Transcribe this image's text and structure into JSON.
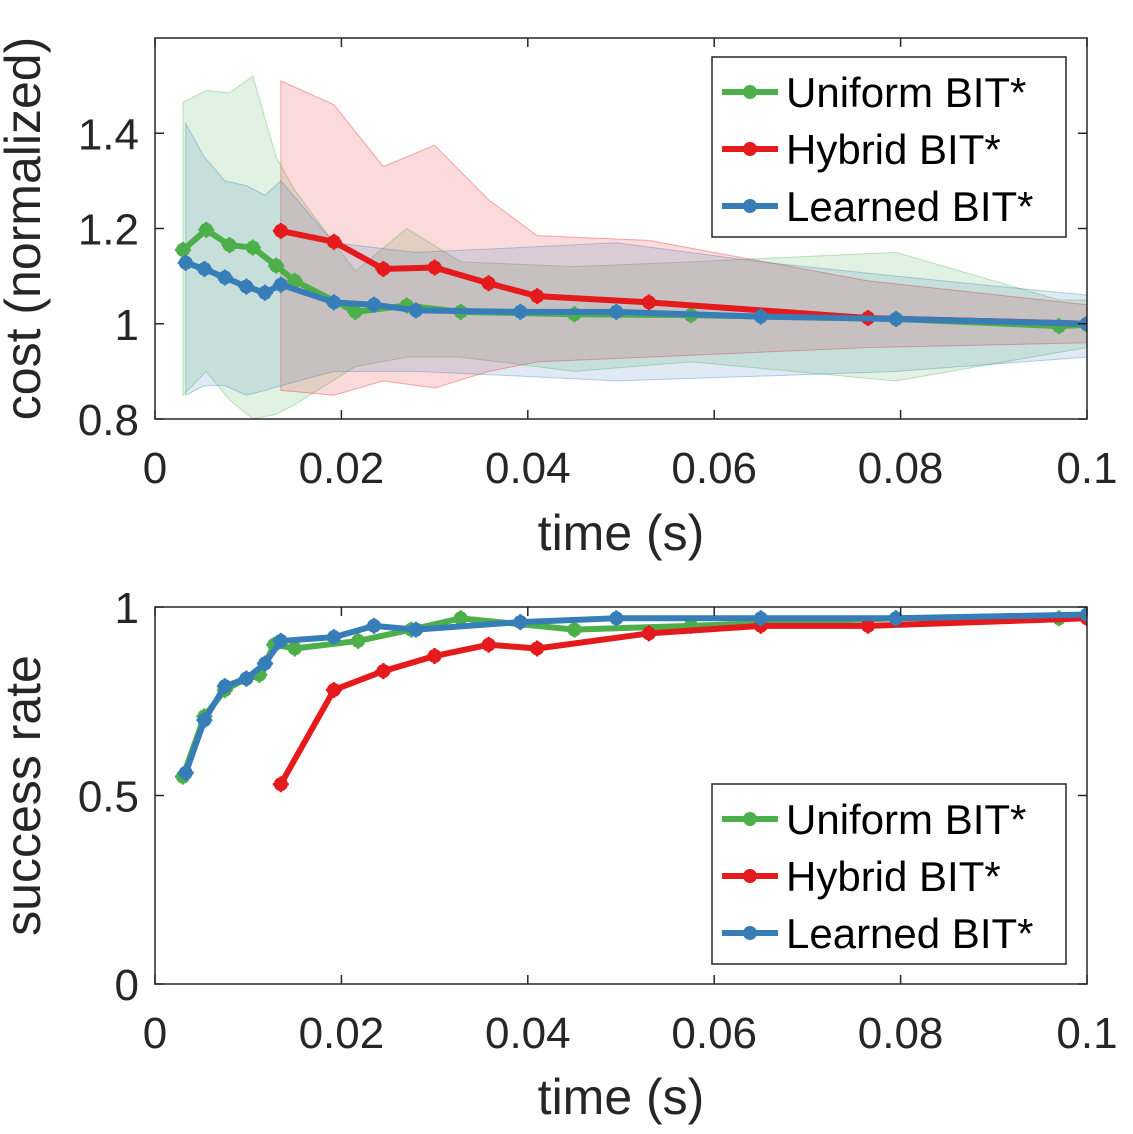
{
  "colors": {
    "uniform": "#4daf4a",
    "hybrid": "#e41a1c",
    "learned": "#377eb8"
  },
  "chart_data": [
    {
      "type": "line",
      "id": "cost",
      "xlabel": "time (s)",
      "ylabel": "cost (normalized)",
      "xlim": [
        0,
        0.1
      ],
      "ylim": [
        0.8,
        1.6
      ],
      "xticks": [
        0,
        0.02,
        0.04,
        0.06,
        0.08,
        0.1
      ],
      "xtick_labels": [
        "0",
        "0.02",
        "0.04",
        "0.06",
        "0.08",
        "0.1"
      ],
      "yticks": [
        0.8,
        1,
        1.2,
        1.4
      ],
      "ytick_labels": [
        "0.8",
        "1",
        "1.2",
        "1.4"
      ],
      "legend_position": "top-right",
      "series": [
        {
          "name": "Uniform BIT*",
          "key": "uniform",
          "x": [
            0.003,
            0.0055,
            0.008,
            0.0105,
            0.013,
            0.015,
            0.0215,
            0.027,
            0.0328,
            0.045,
            0.0575,
            0.0795,
            0.097,
            0.1
          ],
          "y": [
            1.155,
            1.197,
            1.165,
            1.16,
            1.122,
            1.09,
            1.025,
            1.038,
            1.025,
            1.02,
            1.018,
            1.01,
            0.995,
            0.998
          ],
          "band_upper": [
            1.465,
            1.49,
            1.485,
            1.52,
            1.35,
            1.28,
            1.11,
            1.2,
            1.13,
            1.12,
            1.13,
            1.15,
            1.05,
            1.05
          ],
          "band_lower": [
            0.85,
            0.9,
            0.84,
            0.8,
            0.81,
            0.83,
            0.91,
            0.93,
            0.93,
            0.9,
            0.92,
            0.88,
            0.94,
            0.95
          ]
        },
        {
          "name": "Hybrid BIT*",
          "key": "hybrid",
          "x": [
            0.0135,
            0.0192,
            0.0245,
            0.03,
            0.0358,
            0.041,
            0.053,
            0.0765,
            0.1
          ],
          "y": [
            1.195,
            1.172,
            1.115,
            1.118,
            1.085,
            1.058,
            1.045,
            1.012,
            1.0
          ],
          "band_upper": [
            1.51,
            1.46,
            1.33,
            1.375,
            1.26,
            1.185,
            1.175,
            1.09,
            1.04
          ],
          "band_lower": [
            0.86,
            0.85,
            0.88,
            0.865,
            0.9,
            0.92,
            0.93,
            0.95,
            0.96
          ]
        },
        {
          "name": "Learned BIT*",
          "key": "learned",
          "x": [
            0.0033,
            0.0053,
            0.0075,
            0.0098,
            0.0118,
            0.0135,
            0.0192,
            0.0235,
            0.028,
            0.0392,
            0.0495,
            0.065,
            0.0795,
            0.1
          ],
          "y": [
            1.128,
            1.115,
            1.097,
            1.078,
            1.065,
            1.082,
            1.045,
            1.04,
            1.028,
            1.025,
            1.025,
            1.015,
            1.01,
            1.0
          ],
          "band_upper": [
            1.42,
            1.35,
            1.3,
            1.29,
            1.27,
            1.3,
            1.17,
            1.16,
            1.15,
            1.16,
            1.17,
            1.13,
            1.1,
            1.06
          ],
          "band_lower": [
            0.85,
            0.87,
            0.87,
            0.85,
            0.86,
            0.87,
            0.9,
            0.9,
            0.9,
            0.89,
            0.88,
            0.89,
            0.9,
            0.93
          ]
        }
      ]
    },
    {
      "type": "line",
      "id": "success",
      "xlabel": "time (s)",
      "ylabel": "success rate",
      "xlim": [
        0,
        0.1
      ],
      "ylim": [
        0,
        1
      ],
      "xticks": [
        0,
        0.02,
        0.04,
        0.06,
        0.08,
        0.1
      ],
      "xtick_labels": [
        "0",
        "0.02",
        "0.04",
        "0.06",
        "0.08",
        "0.1"
      ],
      "yticks": [
        0,
        0.5,
        1
      ],
      "ytick_labels": [
        "0",
        "0.5",
        "1"
      ],
      "legend_position": "bottom-right",
      "series": [
        {
          "name": "Uniform BIT*",
          "key": "uniform",
          "x": [
            0.003,
            0.0053,
            0.0075,
            0.0098,
            0.0112,
            0.0128,
            0.015,
            0.0218,
            0.0275,
            0.0328,
            0.045,
            0.0575,
            0.0795,
            0.097
          ],
          "y": [
            0.55,
            0.71,
            0.78,
            0.81,
            0.82,
            0.9,
            0.89,
            0.91,
            0.94,
            0.97,
            0.94,
            0.95,
            0.97,
            0.97
          ]
        },
        {
          "name": "Hybrid BIT*",
          "key": "hybrid",
          "x": [
            0.0135,
            0.0192,
            0.0245,
            0.03,
            0.0358,
            0.041,
            0.053,
            0.065,
            0.0765,
            0.1
          ],
          "y": [
            0.53,
            0.78,
            0.83,
            0.87,
            0.9,
            0.89,
            0.93,
            0.95,
            0.95,
            0.97
          ]
        },
        {
          "name": "Learned BIT*",
          "key": "learned",
          "x": [
            0.0033,
            0.0053,
            0.0075,
            0.0098,
            0.0118,
            0.0135,
            0.0192,
            0.0235,
            0.028,
            0.0392,
            0.0495,
            0.065,
            0.0795,
            0.1
          ],
          "y": [
            0.56,
            0.7,
            0.79,
            0.81,
            0.85,
            0.91,
            0.92,
            0.95,
            0.94,
            0.96,
            0.97,
            0.97,
            0.97,
            0.98
          ]
        }
      ]
    }
  ]
}
